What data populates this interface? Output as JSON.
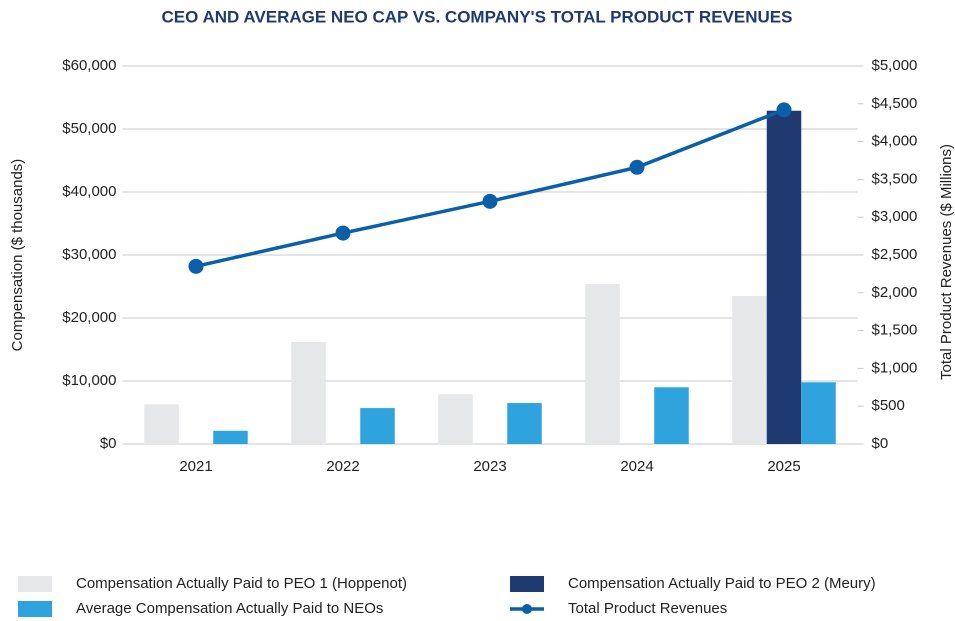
{
  "chart_data": {
    "type": "bar",
    "title": "CEO AND AVERAGE NEO CAP VS. COMPANY'S TOTAL PRODUCT REVENUES",
    "ylabel": "Compensation ($ thousands)",
    "y2label": "Total Product Revenues ($ Millions)",
    "categories": [
      "2021",
      "2022",
      "2023",
      "2024",
      "2025"
    ],
    "series": [
      {
        "name": "Compensation Actually Paid to PEO 1 (Hoppenot)",
        "type": "bar",
        "color": "#e6e7e8",
        "values": [
          6300,
          16200,
          7900,
          25400,
          23500
        ]
      },
      {
        "name": "Compensation Actually Paid to PEO 2 (Meury)",
        "type": "bar",
        "color": "#1f3a70",
        "values": [
          null,
          null,
          null,
          null,
          52900
        ]
      },
      {
        "name": "Average Compensation Actually Paid to NEOs",
        "type": "bar",
        "color": "#2ea3dd",
        "values": [
          2100,
          5700,
          6500,
          9000,
          9800
        ]
      },
      {
        "name": "Total Product Revenues",
        "type": "line",
        "axis": "y2",
        "color": "#0a5fa8",
        "values": [
          2350,
          2790,
          3210,
          3660,
          4420
        ]
      }
    ],
    "ylim": [
      0,
      60000
    ],
    "yticks": [
      {
        "value": 0,
        "label": "$0"
      },
      {
        "value": 10000,
        "label": "$10,000"
      },
      {
        "value": 20000,
        "label": "$20,000"
      },
      {
        "value": 30000,
        "label": "$30,000"
      },
      {
        "value": 40000,
        "label": "$40,000"
      },
      {
        "value": 50000,
        "label": "$50,000"
      },
      {
        "value": 60000,
        "label": "$60,000"
      }
    ],
    "y2lim": [
      0,
      5000
    ],
    "y2ticks": [
      {
        "value": 0,
        "label": "$0"
      },
      {
        "value": 500,
        "label": "$500"
      },
      {
        "value": 1000,
        "label": "$1,000"
      },
      {
        "value": 1500,
        "label": "$1,500"
      },
      {
        "value": 2000,
        "label": "$2,000"
      },
      {
        "value": 2500,
        "label": "$2,500"
      },
      {
        "value": 3000,
        "label": "$3,000"
      },
      {
        "value": 3500,
        "label": "$3,500"
      },
      {
        "value": 4000,
        "label": "$4,000"
      },
      {
        "value": 4500,
        "label": "$4,500"
      },
      {
        "value": 5000,
        "label": "$5,000"
      }
    ],
    "grid": true,
    "legend": "bottom"
  }
}
